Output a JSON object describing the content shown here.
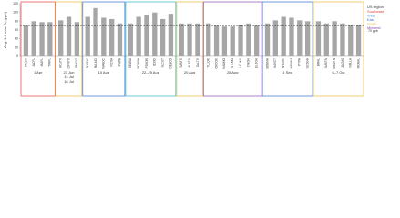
{
  "chart_data": {
    "type": "bar",
    "y_label": "Avg. 1-h max O₃ (ppb)",
    "color": "#a6a6a6",
    "ylim": [
      0,
      120
    ],
    "yticks": [
      0,
      20,
      40,
      60,
      80,
      100,
      120
    ],
    "reference": {
      "value": 70,
      "label": "70 ppb"
    },
    "legend_title": "US region",
    "legend": [
      {
        "name": "Southeast",
        "color": "#e0403a"
      },
      {
        "name": "West",
        "color": "#2bb7c9"
      },
      {
        "name": "East",
        "color": "#3a6fd0"
      },
      {
        "name": "South",
        "color": "#e8b83a"
      },
      {
        "name": "Midwest",
        "color": "#8e4fb0"
      }
    ],
    "groups": [
      {
        "label": [
          "1 Apr"
        ],
        "color": "#e0403a",
        "categories": [
          "ATLGA",
          "JACFL",
          "MIAFL",
          "TPAFL"
        ],
        "values": [
          70,
          80,
          78,
          78
        ]
      },
      {
        "label": [
          "23 Jun",
          "14 Jul",
          "16 Jul"
        ],
        "color": "#e8b83a",
        "categories": [
          "HOUTX",
          "DFWTX",
          "PHXAZ"
        ],
        "values": [
          82,
          90,
          78
        ]
      },
      {
        "label": [
          "10 Aug"
        ],
        "color": "#3a6fd0",
        "categories": [
          "NYCNY",
          "BALMD",
          "WASDC",
          "RICVA",
          "PHIPA"
        ],
        "values": [
          90,
          110,
          88,
          85,
          75
        ]
      },
      {
        "label": [
          "22–25 Aug"
        ],
        "color": "#2bb7c9",
        "categories": [
          "SEAWA",
          "SPOWA",
          "PDXOR",
          "BOIID",
          "SLCUT",
          "DENCO"
        ],
        "values": [
          75,
          90,
          95,
          100,
          85,
          97
        ]
      },
      {
        "label": [
          "20 Aug"
        ],
        "color": "#e8b83a",
        "categories": [
          "SANTX",
          "AUSTX",
          "DALTX"
        ],
        "values": [
          75,
          75,
          75
        ]
      },
      {
        "label": [
          "28 Aug"
        ],
        "color": "#8e4fb0",
        "categories": [
          "TULOK",
          "OKCOK",
          "KANMO",
          "STLMO",
          "LOUKY",
          "CINOH",
          "ELDOH"
        ],
        "values": [
          75,
          70,
          68,
          68,
          72,
          75,
          70
        ]
      },
      {
        "label": [
          "1 Sep"
        ],
        "color": "#3a6fd0",
        "categories": [
          "BOSMA",
          "HARCT",
          "NYCNY",
          "NEWNJ",
          "PITPA",
          "SCOGA"
        ],
        "values": [
          75,
          82,
          90,
          88,
          82,
          80
        ]
      },
      {
        "label": [
          "6–7 Oct"
        ],
        "color": "#e8b83a",
        "categories": [
          "BIRAL",
          "NASTN",
          "MEMTN",
          "JACMS",
          "NOLLA",
          "MONAL"
        ],
        "values": [
          80,
          75,
          80,
          75,
          72,
          72
        ]
      }
    ]
  }
}
